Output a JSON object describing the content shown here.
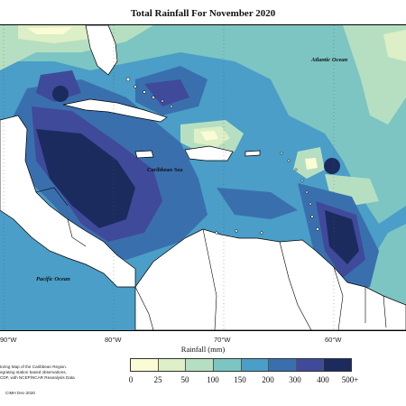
{
  "title": "Total Rainfall For November 2020",
  "map": {
    "labels": {
      "atlantic": "Atlantic Ocean",
      "caribbean": "Caribbean Sea",
      "pacific": "Pacific Ocean"
    },
    "longitudes": [
      "90°W",
      "80°W",
      "70°W",
      "60°W"
    ],
    "water_color": "#ffffff",
    "land_color": "#ffffff"
  },
  "legend": {
    "title": "Rainfall (mm)",
    "ticks": [
      "0",
      "25",
      "50",
      "100",
      "150",
      "200",
      "300",
      "400",
      "500+"
    ],
    "bins": [
      {
        "range": "0-25",
        "color": "#fbfbd5"
      },
      {
        "range": "25-50",
        "color": "#dcefc6"
      },
      {
        "range": "50-100",
        "color": "#b6dfc1"
      },
      {
        "range": "100-150",
        "color": "#7cc5c2"
      },
      {
        "range": "150-200",
        "color": "#4a9ec7"
      },
      {
        "range": "200-300",
        "color": "#3a6fae"
      },
      {
        "range": "300-400",
        "color": "#3f4a9a"
      },
      {
        "range": "400-500+",
        "color": "#1c2b5e"
      }
    ]
  },
  "notes": {
    "line1": "toring Map of the Caribbean Region.",
    "line2": "egrating station based observations,",
    "line3": "CDF, with NCEP/NCAR Reanalysis Data",
    "credit": "CIMH Dec-2020"
  }
}
